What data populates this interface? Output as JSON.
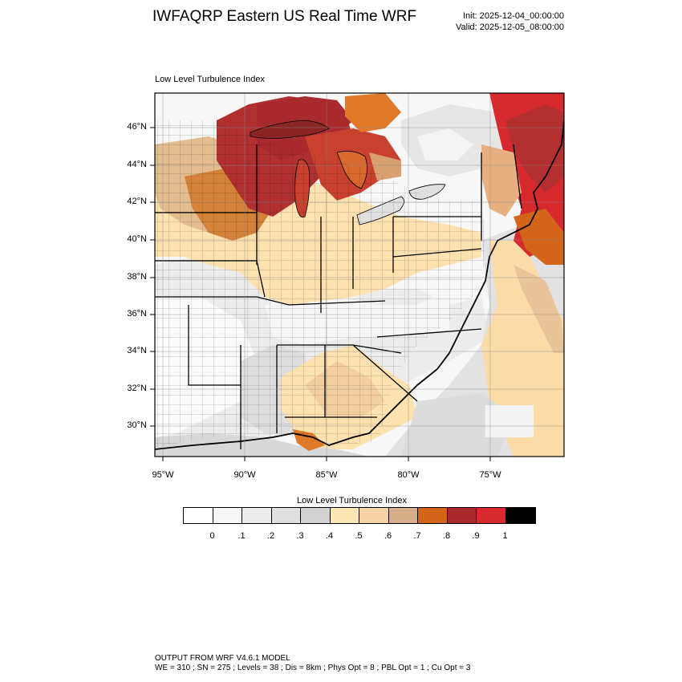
{
  "header": {
    "title": "IWFAQRP Eastern US Real Time WRF",
    "init": "Init: 2025-12-04_00:00:00",
    "valid": "Valid: 2025-12-05_08:00:00"
  },
  "panel": {
    "title": "Low Level Turbulence Index"
  },
  "map": {
    "lat_labels": [
      "46°N",
      "44°N",
      "42°N",
      "40°N",
      "38°N",
      "36°N",
      "34°N",
      "32°N",
      "30°N"
    ],
    "lon_labels": [
      "95°W",
      "90°W",
      "85°W",
      "80°W",
      "75°W"
    ]
  },
  "colorbar": {
    "title": "Low Level Turbulence Index",
    "colors": [
      "#ffffff",
      "#f7f7f7",
      "#ededed",
      "#e0e0e0",
      "#d2d2d2",
      "#ffe7b3",
      "#f7d4a4",
      "#d5b08a",
      "#d2651a",
      "#a82a2d",
      "#d72a2f",
      "#000000"
    ],
    "ticks": [
      "0",
      ".1",
      ".2",
      ".3",
      ".4",
      ".5",
      ".6",
      ".7",
      ".8",
      ".9",
      "1"
    ]
  },
  "footer": {
    "line1": "OUTPUT FROM WRF V4.6.1 MODEL",
    "line2": "WE = 310 ; SN = 275 ; Levels = 38 ; Dis = 8km ; Phys Opt = 8 ; PBL Opt = 1 ; Cu Opt = 3"
  }
}
